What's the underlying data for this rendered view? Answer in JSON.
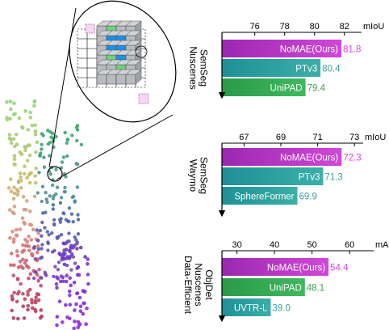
{
  "chart_data": [
    {
      "type": "bar",
      "orientation": "horizontal",
      "title": "Nuscenes SemSeg",
      "xlabel": "mIoU",
      "xlim": [
        73.8,
        83.8
      ],
      "xticks": [
        76,
        78,
        80,
        82
      ],
      "categories": [
        "NoMAE(Ours)",
        "PTv3",
        "UniPAD"
      ],
      "values": [
        81.8,
        80.4,
        79.4
      ],
      "colors": [
        "#b030c0",
        "#2aa0a0",
        "#33a84c"
      ],
      "value_colors": [
        "#dd44dd",
        "#3aa19b",
        "#3ea357"
      ]
    },
    {
      "type": "bar",
      "orientation": "horizontal",
      "title": "Waymo SemSeg",
      "xlabel": "mIoU",
      "xlim": [
        65.8,
        74.0
      ],
      "xticks": [
        67,
        69,
        71,
        73
      ],
      "categories": [
        "NoMAE(Ours)",
        "PTv3",
        "SphereFormer"
      ],
      "values": [
        72.3,
        71.3,
        69.9
      ],
      "colors": [
        "#b030c0",
        "#2aa0a0",
        "#2a9aa2"
      ],
      "value_colors": [
        "#dd44dd",
        "#3aa19b",
        "#3a9ea0"
      ]
    },
    {
      "type": "bar",
      "orientation": "horizontal",
      "title": "Data-Efficient Nuscenes ObjDet",
      "xlabel": "mAP",
      "xlim": [
        26.0,
        69.0
      ],
      "xticks": [
        30,
        40,
        50,
        60
      ],
      "categories": [
        "NoMAE(Ours)",
        "UniPAD",
        "UVTR-L"
      ],
      "values": [
        54.4,
        48.1,
        39.0
      ],
      "colors": [
        "#b030c0",
        "#33a84c",
        "#2a9aa2"
      ],
      "value_colors": [
        "#dd44dd",
        "#3ea357",
        "#3a9ea0"
      ]
    }
  ],
  "titles": [
    [
      "Nuscenes",
      "SemSeg"
    ],
    [
      "Waymo",
      "SemSeg"
    ],
    [
      "Data-Efficient",
      "Nuscenes",
      "ObjDet"
    ]
  ]
}
